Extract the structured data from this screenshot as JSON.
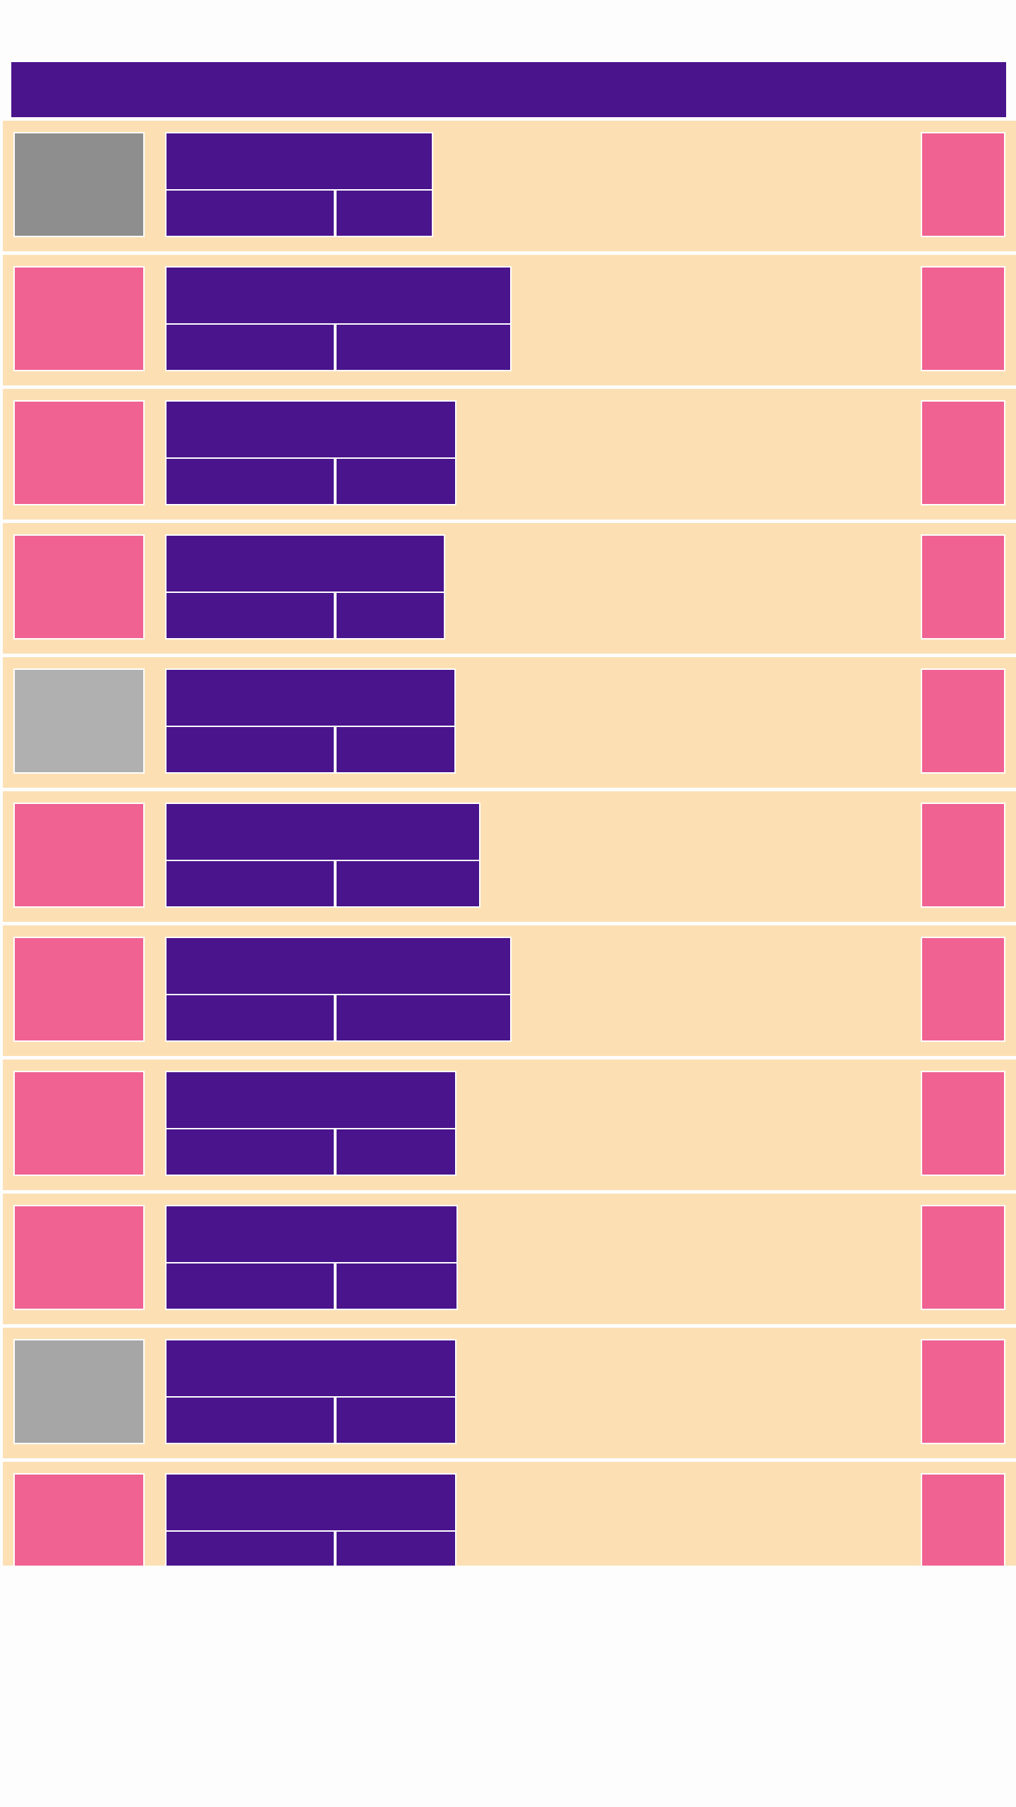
{
  "header": {
    "accent": "#4a148c"
  },
  "colors": {
    "row_background": "#fce0b4",
    "block": "#4a148c",
    "action": "#f06292",
    "page": "#fdfdfd"
  },
  "list": {
    "items": [
      {
        "thumb_color": "#8e8e8e"
      },
      {
        "thumb_color": "#f06292"
      },
      {
        "thumb_color": "#f06292"
      },
      {
        "thumb_color": "#f06292"
      },
      {
        "thumb_color": "#b0b0b0"
      },
      {
        "thumb_color": "#f06292"
      },
      {
        "thumb_color": "#f06292"
      },
      {
        "thumb_color": "#f06292"
      },
      {
        "thumb_color": "#f06292"
      },
      {
        "thumb_color": "#a6a6a6"
      },
      {
        "thumb_color": "#f06292"
      }
    ]
  }
}
